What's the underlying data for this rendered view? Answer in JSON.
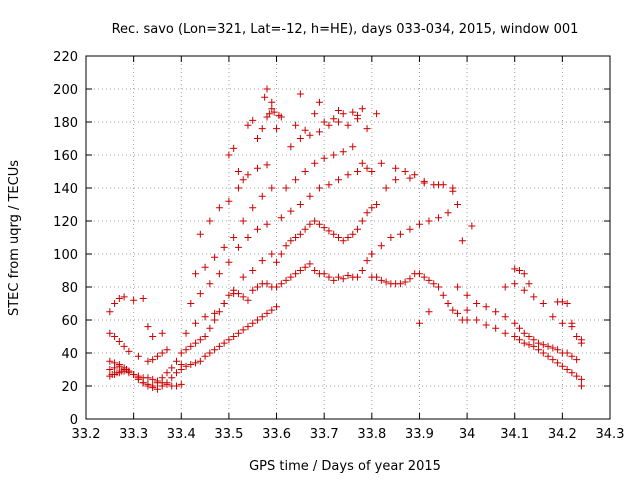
{
  "chart_data": {
    "type": "scatter",
    "title": "Rec. savo (Lon=321, Lat=-12, h=HE), days 033-034, 2015, window 001",
    "xlabel": "GPS time / Days of year 2015",
    "ylabel": "STEC from uqrg / TECUs",
    "xlim": [
      33.2,
      34.3
    ],
    "ylim": [
      0,
      220
    ],
    "xticks": [
      "33.2",
      "33.3",
      "33.4",
      "33.5",
      "33.6",
      "33.7",
      "33.8",
      "33.9",
      "34",
      "34.1",
      "34.2",
      "34.3"
    ],
    "yticks": [
      "0",
      "20",
      "40",
      "60",
      "80",
      "100",
      "120",
      "140",
      "160",
      "180",
      "200",
      "220"
    ],
    "grid": true,
    "marker": "+",
    "color": "#cc0000",
    "series": [
      {
        "name": "STEC",
        "x": [
          33.25,
          33.255,
          33.26,
          33.265,
          33.27,
          33.275,
          33.28,
          33.285,
          33.29,
          33.3,
          33.31,
          33.32,
          33.33,
          33.34,
          33.35,
          33.36,
          33.37,
          33.38,
          33.39,
          33.4,
          33.25,
          33.26,
          33.27,
          33.28,
          33.29,
          33.3,
          33.31,
          33.32,
          33.33,
          33.34,
          33.35,
          33.36,
          33.37,
          33.38,
          33.39,
          33.4,
          33.25,
          33.26,
          33.27,
          33.28,
          33.29,
          33.3,
          33.31,
          33.32,
          33.33,
          33.34,
          33.35,
          33.36,
          33.37,
          33.38,
          33.39,
          33.25,
          33.26,
          33.27,
          33.28,
          33.29,
          33.31,
          33.33,
          33.34,
          33.35,
          33.36,
          33.37,
          33.25,
          33.26,
          33.27,
          33.28,
          33.3,
          33.32,
          33.33,
          33.34,
          33.36,
          33.4,
          33.41,
          33.42,
          33.43,
          33.44,
          33.45,
          33.46,
          33.47,
          33.48,
          33.49,
          33.5,
          33.51,
          33.52,
          33.53,
          33.54,
          33.55,
          33.56,
          33.57,
          33.58,
          33.59,
          33.6,
          33.4,
          33.41,
          33.42,
          33.43,
          33.44,
          33.45,
          33.46,
          33.47,
          33.48,
          33.49,
          33.5,
          33.51,
          33.52,
          33.53,
          33.54,
          33.55,
          33.56,
          33.57,
          33.58,
          33.59,
          33.6,
          33.41,
          33.43,
          33.45,
          33.47,
          33.49,
          33.51,
          33.53,
          33.55,
          33.57,
          33.59,
          33.42,
          33.44,
          33.46,
          33.48,
          33.5,
          33.52,
          33.54,
          33.56,
          33.58,
          33.43,
          33.45,
          33.47,
          33.49,
          33.51,
          33.53,
          33.55,
          33.57,
          33.59,
          33.44,
          33.46,
          33.48,
          33.5,
          33.52,
          33.54,
          33.56,
          33.58,
          33.5,
          33.51,
          33.52,
          33.53,
          33.54,
          33.55,
          33.56,
          33.57,
          33.58,
          33.59,
          33.575,
          33.58,
          33.585,
          33.59,
          33.595,
          33.6,
          33.605,
          33.61,
          33.6,
          33.61,
          33.62,
          33.63,
          33.64,
          33.65,
          33.66,
          33.67,
          33.68,
          33.69,
          33.7,
          33.71,
          33.72,
          33.73,
          33.74,
          33.75,
          33.76,
          33.77,
          33.78,
          33.79,
          33.8,
          33.6,
          33.61,
          33.62,
          33.63,
          33.64,
          33.65,
          33.66,
          33.67,
          33.68,
          33.69,
          33.7,
          33.71,
          33.72,
          33.73,
          33.74,
          33.75,
          33.76,
          33.77,
          33.78,
          33.79,
          33.8,
          33.61,
          33.63,
          33.65,
          33.67,
          33.69,
          33.71,
          33.73,
          33.75,
          33.77,
          33.79,
          33.62,
          33.64,
          33.66,
          33.68,
          33.7,
          33.72,
          33.74,
          33.76,
          33.78,
          33.8,
          33.63,
          33.65,
          33.67,
          33.69,
          33.71,
          33.73,
          33.75,
          33.77,
          33.79,
          33.64,
          33.66,
          33.68,
          33.7,
          33.72,
          33.74,
          33.76,
          33.78,
          33.65,
          33.69,
          33.73,
          33.77,
          33.81,
          33.8,
          33.81,
          33.82,
          33.83,
          33.84,
          33.85,
          33.86,
          33.87,
          33.88,
          33.89,
          33.9,
          33.91,
          33.92,
          33.93,
          33.94,
          33.95,
          33.96,
          33.97,
          33.98,
          33.99,
          34.0,
          33.8,
          33.82,
          33.84,
          33.86,
          33.88,
          33.9,
          33.92,
          33.94,
          33.96,
          33.98,
          33.81,
          33.83,
          33.85,
          33.87,
          33.89,
          33.91,
          33.93,
          33.95,
          33.97,
          33.82,
          33.85,
          33.88,
          33.91,
          33.94,
          33.97,
          33.99,
          33.9,
          33.92,
          33.96,
          33.98,
          34.01,
          34.0,
          34.02,
          34.04,
          34.06,
          34.08,
          34.1,
          34.11,
          34.12,
          34.13,
          34.14,
          34.15,
          34.16,
          34.17,
          34.18,
          34.19,
          34.2,
          34.21,
          34.22,
          34.23,
          34.24,
          34.0,
          34.02,
          34.04,
          34.06,
          34.08,
          34.1,
          34.11,
          34.12,
          34.13,
          34.14,
          34.15,
          34.16,
          34.17,
          34.18,
          34.19,
          34.2,
          34.21,
          34.22,
          34.23,
          34.24,
          34.08,
          34.1,
          34.12,
          34.14,
          34.16,
          34.18,
          34.2,
          34.22,
          34.24,
          34.1,
          34.11,
          34.12,
          34.13,
          34.19,
          34.2,
          34.21,
          34.22,
          34.23,
          34.24
        ],
        "y": [
          26,
          27,
          27,
          28,
          28,
          29,
          29,
          30,
          28,
          27,
          26,
          25,
          25,
          24,
          23,
          22,
          21,
          20,
          20,
          21,
          30,
          31,
          32,
          30,
          29,
          27,
          25,
          22,
          20,
          19,
          18,
          20,
          22,
          25,
          28,
          33,
          35,
          34,
          33,
          31,
          29,
          27,
          24,
          22,
          21,
          20,
          22,
          25,
          28,
          31,
          35,
          52,
          50,
          47,
          44,
          41,
          38,
          35,
          36,
          38,
          40,
          42,
          65,
          70,
          73,
          74,
          72,
          73,
          56,
          50,
          52,
          30,
          32,
          33,
          34,
          35,
          38,
          40,
          42,
          44,
          46,
          48,
          50,
          52,
          54,
          56,
          58,
          60,
          62,
          64,
          66,
          68,
          40,
          42,
          44,
          46,
          48,
          50,
          55,
          60,
          65,
          70,
          75,
          78,
          76,
          74,
          72,
          78,
          80,
          82,
          82,
          80,
          80,
          52,
          58,
          62,
          64,
          70,
          76,
          86,
          90,
          96,
          100,
          70,
          76,
          82,
          88,
          95,
          104,
          110,
          115,
          118,
          88,
          92,
          98,
          104,
          110,
          120,
          128,
          135,
          140,
          112,
          120,
          128,
          132,
          140,
          148,
          152,
          154,
          160,
          164,
          150,
          145,
          178,
          181,
          170,
          176,
          183,
          188,
          195,
          200,
          185,
          192,
          186,
          176,
          184,
          183,
          80,
          82,
          84,
          86,
          88,
          90,
          92,
          94,
          90,
          88,
          88,
          86,
          84,
          86,
          85,
          87,
          86,
          86,
          90,
          96,
          100,
          95,
          100,
          105,
          108,
          110,
          112,
          115,
          118,
          120,
          118,
          116,
          114,
          112,
          110,
          108,
          110,
          112,
          115,
          120,
          125,
          128,
          122,
          126,
          130,
          135,
          140,
          142,
          145,
          148,
          150,
          152,
          140,
          145,
          150,
          155,
          158,
          160,
          162,
          165,
          155,
          150,
          165,
          170,
          172,
          174,
          178,
          180,
          178,
          182,
          176,
          178,
          175,
          185,
          180,
          182,
          185,
          186,
          188,
          197,
          192,
          187,
          184,
          185,
          86,
          86,
          84,
          83,
          82,
          82,
          82,
          83,
          85,
          88,
          88,
          86,
          84,
          82,
          80,
          75,
          70,
          66,
          64,
          60,
          60,
          100,
          105,
          110,
          112,
          115,
          118,
          120,
          122,
          125,
          130,
          130,
          140,
          145,
          150,
          148,
          144,
          142,
          142,
          138,
          155,
          152,
          146,
          143,
          142,
          140,
          108,
          58,
          65,
          70,
          80,
          117,
          66,
          60,
          57,
          55,
          52,
          50,
          48,
          46,
          45,
          44,
          42,
          40,
          38,
          36,
          34,
          32,
          30,
          28,
          26,
          24,
          75,
          70,
          68,
          65,
          62,
          58,
          55,
          52,
          50,
          48,
          46,
          45,
          44,
          43,
          42,
          40,
          40,
          38,
          36,
          20,
          80,
          82,
          78,
          74,
          70,
          62,
          58,
          56,
          46,
          91,
          90,
          88,
          82,
          71,
          71,
          70,
          58,
          50,
          48
        ]
      }
    ]
  }
}
